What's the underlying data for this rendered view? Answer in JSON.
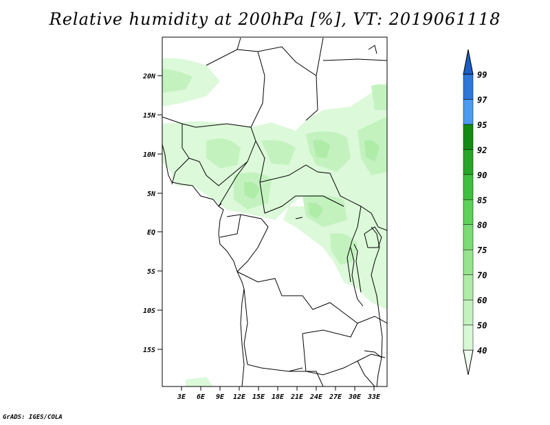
{
  "title": "Relative humidity at 200hPa [%], VT: 2019061118",
  "credit": "GrADS: IGES/COLA",
  "lon_ticks": [
    "3E",
    "6E",
    "9E",
    "12E",
    "15E",
    "18E",
    "21E",
    "24E",
    "27E",
    "30E",
    "33E"
  ],
  "lat_ticks": [
    "20N",
    "15N",
    "10N",
    "5N",
    "EQ",
    "5S",
    "10S",
    "15S"
  ],
  "colorbar": {
    "levels": [
      "40",
      "50",
      "60",
      "70",
      "75",
      "80",
      "85",
      "90",
      "92",
      "95",
      "97",
      "99"
    ],
    "colors": [
      "#f0fff0",
      "#d7f8d5",
      "#c3f2bf",
      "#aeeca8",
      "#96e58e",
      "#7ddb75",
      "#5fd05a",
      "#3fbf3f",
      "#28a428",
      "#138a13",
      "#4b9bef",
      "#2e77d8",
      "#1c5cc4"
    ]
  }
}
